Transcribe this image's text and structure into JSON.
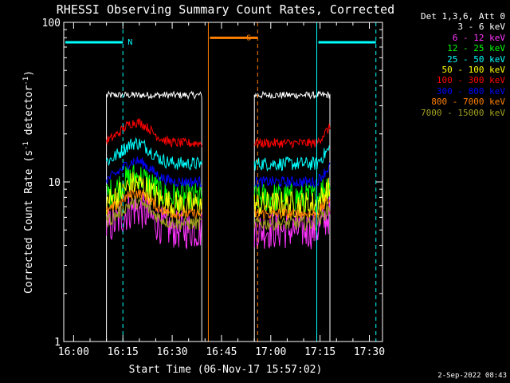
{
  "chart_data": {
    "type": "line",
    "title": "RHESSI Observing Summary Count Rates, Corrected",
    "xlabel": "Start Time (06-Nov-17 15:57:02)",
    "ylabel_main": "Corrected Count Rate (s",
    "ylabel_sup1": "-1",
    "ylabel_mid": " detector",
    "ylabel_sup2": "-1",
    "ylabel_end": ")",
    "yscale": "log",
    "ylim": [
      1,
      100
    ],
    "xlim": [
      "15:57",
      "17:34"
    ],
    "y_ticks": [
      "1",
      "10",
      "100"
    ],
    "x_ticks": [
      "16:00",
      "16:15",
      "16:30",
      "16:45",
      "17:00",
      "17:15",
      "17:30"
    ],
    "legend_title": "Det 1,3,6, Att 0",
    "series": [
      {
        "name": "3 - 6 keV",
        "color": "#ffffff",
        "level": 35,
        "noise": 0.05
      },
      {
        "name": "6 - 12 keV",
        "color": "#ff33ff",
        "level": 5.0,
        "noise": 0.28
      },
      {
        "name": "12 - 25 keV",
        "color": "#00ff00",
        "level": 8.0,
        "noise": 0.22
      },
      {
        "name": "25 - 50 keV",
        "color": "#00ffff",
        "level": 13.0,
        "noise": 0.1
      },
      {
        "name": "50 - 100 keV",
        "color": "#ffff00",
        "level": 7.2,
        "noise": 0.2
      },
      {
        "name": "100 - 300 keV",
        "color": "#ff0000",
        "level": 17.5,
        "noise": 0.07
      },
      {
        "name": "300 - 800 keV",
        "color": "#0000ff",
        "level": 10.0,
        "noise": 0.08
      },
      {
        "name": "800 - 7000 keV",
        "color": "#ff8000",
        "level": 6.3,
        "noise": 0.08
      },
      {
        "name": "7000 - 15000 keV",
        "color": "#a0a020",
        "level": 5.5,
        "noise": 0.1
      }
    ],
    "segments": [
      {
        "start": "16:10",
        "end": "16:39"
      },
      {
        "start": "16:55",
        "end": "17:18"
      }
    ],
    "events": [
      {
        "label": "N",
        "color": "#00ffff",
        "start": "15:57",
        "end": "16:15",
        "bar_y": 75
      },
      {
        "label": "",
        "color": "#00ffff",
        "start": "17:14",
        "end": "17:32",
        "bar_y": 75
      },
      {
        "label": "S",
        "color": "#ff8000",
        "start": "16:41",
        "end": "16:56",
        "bar_y": 80
      }
    ],
    "timestamp": "2-Sep-2022 08:43"
  }
}
